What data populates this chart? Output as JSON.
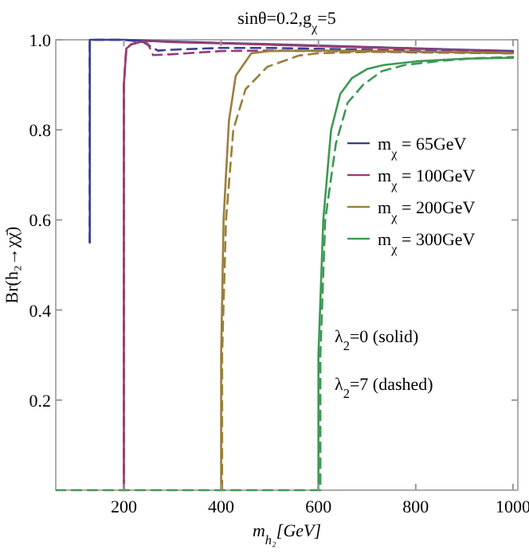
{
  "chart_data": {
    "type": "line",
    "title": "sinθ=0.2,g$_{χ}$=5",
    "xlabel": "m$_{h₂}$[GeV]",
    "ylabel": "Br(h₂→χχ̄)",
    "xlim": [
      60,
      1010
    ],
    "ylim": [
      0,
      1.0
    ],
    "xticks": [
      200,
      400,
      600,
      800,
      1000
    ],
    "yticks": [
      0.2,
      0.4,
      0.6,
      0.8,
      {
        "value": 1,
        "label": "1.0"
      }
    ],
    "grid": false,
    "legend": "right",
    "marker": "none",
    "series": [
      {
        "name": "m$_{χ}$ = 65GeV",
        "color": "#3d3d99",
        "line_style": "solid",
        "x": [
          130,
          130,
          150,
          200,
          250,
          300,
          400,
          500,
          600,
          700,
          800,
          900,
          1000
        ],
        "values": [
          0.55,
          1.0,
          1.0,
          1.0,
          0.998,
          0.996,
          0.993,
          0.99,
          0.987,
          0.984,
          0.981,
          0.978,
          0.975
        ]
      },
      {
        "color": "#3d3d99",
        "line_style": "dashed",
        "x": [
          130,
          130,
          150,
          200,
          240,
          255,
          270,
          300,
          400,
          500,
          600,
          700,
          800,
          900,
          1000
        ],
        "values": [
          0.55,
          1.0,
          1.0,
          1.0,
          0.995,
          0.985,
          0.976,
          0.978,
          0.982,
          0.982,
          0.98,
          0.978,
          0.976,
          0.974,
          0.972
        ]
      },
      {
        "name": "m$_{χ}$ = 100GeV",
        "color": "#993d70",
        "line_style": "solid",
        "x": [
          200,
          200,
          205,
          215,
          240,
          260,
          300,
          400,
          500,
          600,
          700,
          800,
          900,
          1000
        ],
        "values": [
          0,
          0.9,
          0.98,
          0.99,
          0.997,
          0.997,
          0.995,
          0.992,
          0.989,
          0.986,
          0.983,
          0.98,
          0.977,
          0.973
        ]
      },
      {
        "color": "#993d70",
        "line_style": "dashed",
        "x": [
          200,
          200,
          205,
          215,
          240,
          250,
          260,
          300,
          400,
          500,
          600,
          700,
          800,
          900,
          1000
        ],
        "values": [
          0,
          0.9,
          0.98,
          0.99,
          0.997,
          0.99,
          0.966,
          0.968,
          0.975,
          0.976,
          0.975,
          0.974,
          0.972,
          0.971,
          0.97
        ]
      },
      {
        "name": "m$_{χ}$ = 200GeV",
        "color": "#997f3d",
        "line_style": "solid",
        "x": [
          400,
          400,
          405,
          416,
          430,
          462,
          500,
          600,
          700,
          800,
          900,
          1000
        ],
        "values": [
          0,
          0.3,
          0.6,
          0.82,
          0.92,
          0.97,
          0.975,
          0.976,
          0.975,
          0.974,
          0.972,
          0.97
        ]
      },
      {
        "color": "#997f3d",
        "line_style": "dashed",
        "x": [
          402,
          402,
          410,
          425,
          450,
          495,
          560,
          600,
          700,
          800,
          900,
          1000
        ],
        "values": [
          0,
          0.3,
          0.6,
          0.8,
          0.89,
          0.94,
          0.965,
          0.97,
          0.973,
          0.973,
          0.972,
          0.97
        ]
      },
      {
        "name": "m$_{χ}$ = 300GeV",
        "color": "#3d9954",
        "line_style": "solid",
        "x": [
          600,
          600,
          610,
          626,
          645,
          669,
          700,
          734,
          800,
          900,
          1000
        ],
        "values": [
          0,
          0.3,
          0.6,
          0.8,
          0.88,
          0.915,
          0.935,
          0.944,
          0.952,
          0.958,
          0.96
        ]
      },
      {
        "color": "#3d9954",
        "line_style": "dashed",
        "x": [
          60,
          604,
          604,
          614,
          636,
          660,
          692,
          730,
          777,
          850,
          920,
          1000
        ],
        "values": [
          0,
          0,
          0.3,
          0.6,
          0.77,
          0.86,
          0.9,
          0.93,
          0.944,
          0.953,
          0.959,
          0.962
        ]
      }
    ],
    "annotations": [
      "λ$_{2}$=0 (solid)",
      "λ$_{2}$=7 (dashed)"
    ]
  }
}
